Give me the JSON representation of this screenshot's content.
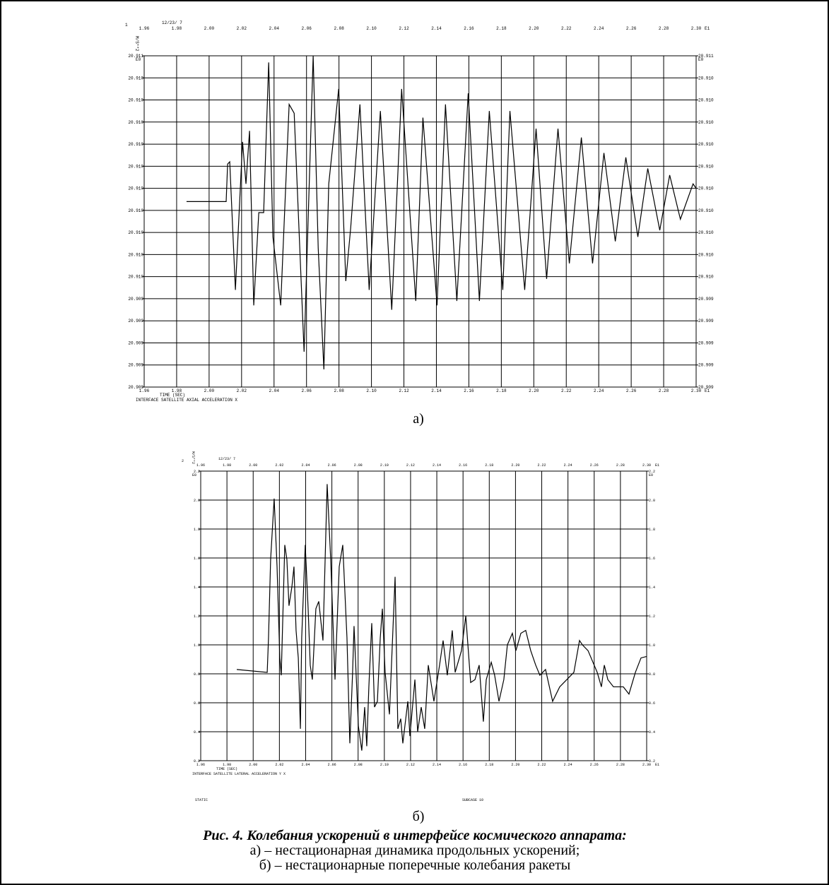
{
  "chart_data": [
    {
      "type": "line",
      "header_number": "1",
      "date": "12/23/ 7",
      "y_label": "M/S**2",
      "y_exponent": "E0",
      "x_exponent": "E1",
      "x_label": "TIME (SEC)",
      "title": "INTERFACE SATELLITE AXIAL ACCELERATION  X",
      "grid": true,
      "color": "#000000",
      "xlim": [
        1.96,
        2.3
      ],
      "xticks": [
        1.96,
        1.98,
        {
          "value": 2,
          "label": "2.00"
        },
        2.02,
        2.04,
        2.06,
        2.08,
        {
          "value": 2.1,
          "label": "2.10"
        },
        2.12,
        2.14,
        2.16,
        2.18,
        {
          "value": 2.2,
          "label": "2.20"
        },
        2.22,
        2.24,
        2.26,
        2.28,
        {
          "value": 2.3,
          "label": "2.30"
        }
      ],
      "ylim": [
        20.909,
        20.9105
      ],
      "yticks": [
        {
          "value": 20.909,
          "label": "20.909"
        },
        {
          "value": 20.9091,
          "label": "20.909"
        },
        {
          "value": 20.9092,
          "label": "20.909"
        },
        {
          "value": 20.9093,
          "label": "20.909"
        },
        {
          "value": 20.9094,
          "label": "20.909"
        },
        {
          "value": 20.9095,
          "label": "20.910"
        },
        {
          "value": 20.9096,
          "label": "20.910"
        },
        {
          "value": 20.9097,
          "label": "20.910"
        },
        {
          "value": 20.9098,
          "label": "20.910"
        },
        {
          "value": 20.9099,
          "label": "20.910"
        },
        {
          "value": 20.91,
          "label": "20.910"
        },
        {
          "value": 20.9101,
          "label": "20.910"
        },
        {
          "value": 20.9102,
          "label": "20.910"
        },
        {
          "value": 20.9103,
          "label": "20.910"
        },
        {
          "value": 20.9104,
          "label": "20.910"
        },
        {
          "value": 20.9105,
          "label": "20.911"
        }
      ],
      "x": [
        1.9861,
        2.0105,
        2.0114,
        2.0127,
        2.0162,
        2.0206,
        2.0227,
        2.0249,
        2.0275,
        2.0306,
        2.0336,
        2.0367,
        2.0393,
        2.0441,
        2.0493,
        2.0524,
        2.0585,
        2.0641,
        2.0672,
        2.0707,
        2.0737,
        2.0798,
        2.0842,
        2.0872,
        2.0929,
        2.0986,
        2.1055,
        2.1125,
        2.1186,
        2.1273,
        2.1317,
        2.1404,
        2.1456,
        2.1526,
        2.1596,
        2.1665,
        2.1726,
        2.1809,
        2.1853,
        2.1944,
        2.2014,
        2.2079,
        2.2149,
        2.2219,
        2.2293,
        2.2362,
        2.2432,
        2.2502,
        2.2567,
        2.2641,
        2.2702,
        2.2776,
        2.2837,
        2.2903,
        2.2981,
        2.3
      ],
      "values": [
        20.90984,
        20.90984,
        20.91001,
        20.91002,
        20.90944,
        20.91011,
        20.90992,
        20.91016,
        20.90937,
        20.90979,
        20.90979,
        20.91047,
        20.90968,
        20.90937,
        20.91028,
        20.91024,
        20.90916,
        20.9105,
        20.90963,
        20.90908,
        20.90992,
        20.91035,
        20.90948,
        20.90972,
        20.91028,
        20.90944,
        20.91025,
        20.90935,
        20.91035,
        20.90939,
        20.91022,
        20.90937,
        20.91028,
        20.90939,
        20.91033,
        20.90939,
        20.91025,
        20.90944,
        20.91025,
        20.90944,
        20.91017,
        20.90949,
        20.91017,
        20.90956,
        20.91013,
        20.90956,
        20.91006,
        20.90966,
        20.91004,
        20.90968,
        20.90999,
        20.90971,
        20.90996,
        20.90976,
        20.90992,
        20.9099
      ]
    },
    {
      "type": "line",
      "header_number": "2",
      "date": "12/23/ 7",
      "y_label": "M/S**2",
      "y_exponent": "E0",
      "x_exponent": "E1",
      "x_label": "TIME (SEC)",
      "title": "INTERFACE SATELLITE LATERAL ACCELERATION Y  X",
      "footer_left": "STATIC",
      "footer_right": "SUBCASE 10",
      "grid": true,
      "color": "#000000",
      "xlim": [
        1.96,
        2.3
      ],
      "xticks": [
        1.96,
        1.98,
        {
          "value": 2,
          "label": "2.00"
        },
        2.02,
        2.04,
        2.06,
        2.08,
        {
          "value": 2.1,
          "label": "2.10"
        },
        2.12,
        2.14,
        2.16,
        2.18,
        {
          "value": 2.2,
          "label": "2.20"
        },
        2.22,
        2.24,
        2.26,
        2.28,
        {
          "value": 2.3,
          "label": "2.30"
        }
      ],
      "ylim": [
        0.2,
        2.2
      ],
      "yticks": [
        0.2,
        0.4,
        0.6,
        0.8,
        {
          "value": 1,
          "label": "1.0"
        },
        1.2,
        1.4,
        1.6,
        1.8,
        {
          "value": 2,
          "label": "2.0"
        },
        2.2
      ],
      "x": [
        1.9875,
        2.0107,
        2.0117,
        2.0133,
        2.016,
        2.0182,
        2.0203,
        2.0214,
        2.0241,
        2.0257,
        2.0273,
        2.0295,
        2.0311,
        2.0327,
        2.0344,
        2.036,
        2.037,
        2.0397,
        2.0419,
        2.0435,
        2.0451,
        2.0478,
        2.05,
        2.0532,
        2.0564,
        2.0591,
        2.0624,
        2.0656,
        2.0683,
        2.0715,
        2.0737,
        2.0758,
        2.0769,
        2.0802,
        2.0828,
        2.085,
        2.0866,
        2.0882,
        2.0904,
        2.0925,
        2.0947,
        2.0969,
        2.0985,
        2.1006,
        2.1039,
        2.1082,
        2.1103,
        2.1125,
        2.1141,
        2.1179,
        2.1195,
        2.1233,
        2.1254,
        2.1281,
        2.1308,
        2.1335,
        2.1378,
        2.1421,
        2.1448,
        2.148,
        2.1518,
        2.154,
        2.1588,
        2.1621,
        2.1658,
        2.1691,
        2.1723,
        2.1755,
        2.1777,
        2.1815,
        2.1841,
        2.1874,
        2.1911,
        2.1938,
        2.1976,
        2.2003,
        2.2041,
        2.2078,
        2.2116,
        2.2154,
        2.2186,
        2.2229,
        2.2283,
        2.2337,
        2.2391,
        2.2445,
        2.2488,
        2.251,
        2.2553,
        2.2623,
        2.2655,
        2.2677,
        2.2704,
        2.2747,
        2.2822,
        2.2865,
        2.2914,
        2.2957,
        2.3
      ],
      "values": [
        0.83,
        0.81,
        1.05,
        1.59,
        2.01,
        1.54,
        0.91,
        0.79,
        1.69,
        1.59,
        1.27,
        1.4,
        1.54,
        1.1,
        0.91,
        0.42,
        1.05,
        1.69,
        1.25,
        0.86,
        0.76,
        1.25,
        1.3,
        1.03,
        2.11,
        1.59,
        0.76,
        1.54,
        1.69,
        1.05,
        0.32,
        0.81,
        1.13,
        0.44,
        0.27,
        0.57,
        0.3,
        0.71,
        1.15,
        0.57,
        0.61,
        1.05,
        1.25,
        0.81,
        0.52,
        1.47,
        0.42,
        0.49,
        0.32,
        0.61,
        0.37,
        0.76,
        0.4,
        0.57,
        0.42,
        0.86,
        0.61,
        0.86,
        1.03,
        0.79,
        1.1,
        0.81,
        0.96,
        1.2,
        0.74,
        0.76,
        0.86,
        0.47,
        0.76,
        0.88,
        0.79,
        0.61,
        0.76,
        1,
        1.08,
        0.96,
        1.08,
        1.1,
        0.96,
        0.86,
        0.79,
        0.83,
        0.61,
        0.71,
        0.76,
        0.81,
        1.03,
        1,
        0.96,
        0.81,
        0.71,
        0.86,
        0.76,
        0.71,
        0.71,
        0.66,
        0.81,
        0.91,
        0.92
      ]
    }
  ],
  "figure": {
    "panel_labels": [
      "а)",
      "б)"
    ],
    "caption_title": "Рис. 4. Колебания ускорений в интерфейсе космического аппарата:",
    "caption_lines": [
      "а) – нестационарная динамика продольных ускорений;",
      "б) – нестационарные поперечные колебания ракеты"
    ]
  }
}
